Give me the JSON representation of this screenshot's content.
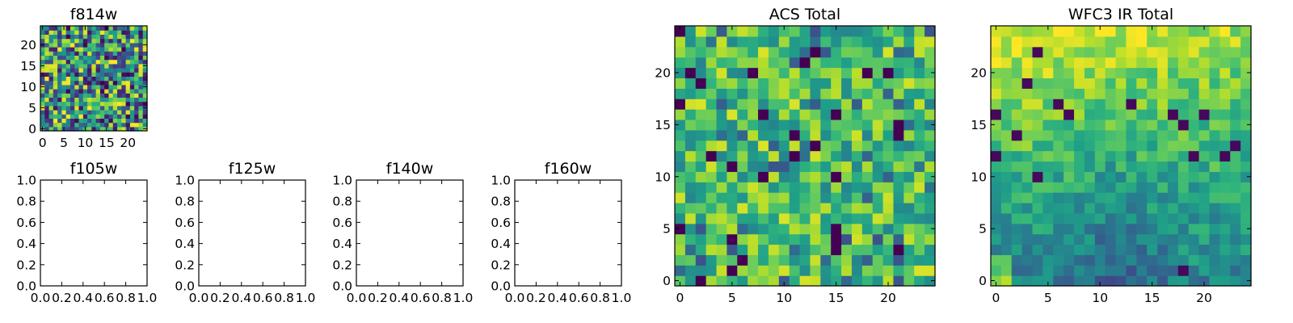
{
  "chart_data": [
    {
      "type": "heatmap",
      "title": "f814w",
      "colormap": "viridis",
      "xlim": [
        -0.5,
        24.5
      ],
      "ylim": [
        -0.5,
        24.5
      ],
      "x_ticks": [
        "0",
        "5",
        "10",
        "15",
        "20"
      ],
      "y_ticks": [
        "0",
        "5",
        "10",
        "15",
        "20"
      ],
      "grid_size": [
        25,
        25
      ],
      "value_range": [
        0,
        1
      ],
      "pattern": "uniform random noise"
    },
    {
      "type": "line",
      "title": "f105w",
      "xlim": [
        0,
        1
      ],
      "ylim": [
        0,
        1
      ],
      "x_ticks": [
        "0.0",
        "0.2",
        "0.4",
        "0.6",
        "0.8",
        "1.0"
      ],
      "y_ticks": [
        "0.0",
        "0.2",
        "0.4",
        "0.6",
        "0.8",
        "1.0"
      ],
      "series": []
    },
    {
      "type": "line",
      "title": "f125w",
      "xlim": [
        0,
        1
      ],
      "ylim": [
        0,
        1
      ],
      "x_ticks": [
        "0.0",
        "0.2",
        "0.4",
        "0.6",
        "0.8",
        "1.0"
      ],
      "y_ticks": [
        "0.0",
        "0.2",
        "0.4",
        "0.6",
        "0.8",
        "1.0"
      ],
      "series": []
    },
    {
      "type": "line",
      "title": "f140w",
      "xlim": [
        0,
        1
      ],
      "ylim": [
        0,
        1
      ],
      "x_ticks": [
        "0.0",
        "0.2",
        "0.4",
        "0.6",
        "0.8",
        "1.0"
      ],
      "y_ticks": [
        "0.0",
        "0.2",
        "0.4",
        "0.6",
        "0.8",
        "1.0"
      ],
      "series": []
    },
    {
      "type": "line",
      "title": "f160w",
      "xlim": [
        0,
        1
      ],
      "ylim": [
        0,
        1
      ],
      "x_ticks": [
        "0.0",
        "0.2",
        "0.4",
        "0.6",
        "0.8",
        "1.0"
      ],
      "y_ticks": [
        "0.0",
        "0.2",
        "0.4",
        "0.6",
        "0.8",
        "1.0"
      ],
      "series": []
    },
    {
      "type": "heatmap",
      "title": "ACS Total",
      "colormap": "viridis",
      "xlim": [
        -0.5,
        24.5
      ],
      "ylim": [
        -0.5,
        24.5
      ],
      "x_ticks": [
        "0",
        "5",
        "10",
        "15",
        "20"
      ],
      "y_ticks": [
        "0",
        "5",
        "10",
        "15",
        "20"
      ],
      "grid_size": [
        25,
        25
      ],
      "value_range": [
        0,
        1
      ],
      "pattern": "random noise, mostly mid-high values"
    },
    {
      "type": "heatmap",
      "title": "WFC3 IR Total",
      "colormap": "viridis",
      "xlim": [
        -0.5,
        24.5
      ],
      "ylim": [
        -0.5,
        24.5
      ],
      "x_ticks": [
        "0",
        "5",
        "10",
        "15",
        "20"
      ],
      "y_ticks": [
        "0",
        "5",
        "10",
        "15",
        "20"
      ],
      "grid_size": [
        25,
        25
      ],
      "value_range": [
        0,
        1
      ],
      "pattern": "brighter toward top-left, darker toward bottom-center"
    }
  ]
}
